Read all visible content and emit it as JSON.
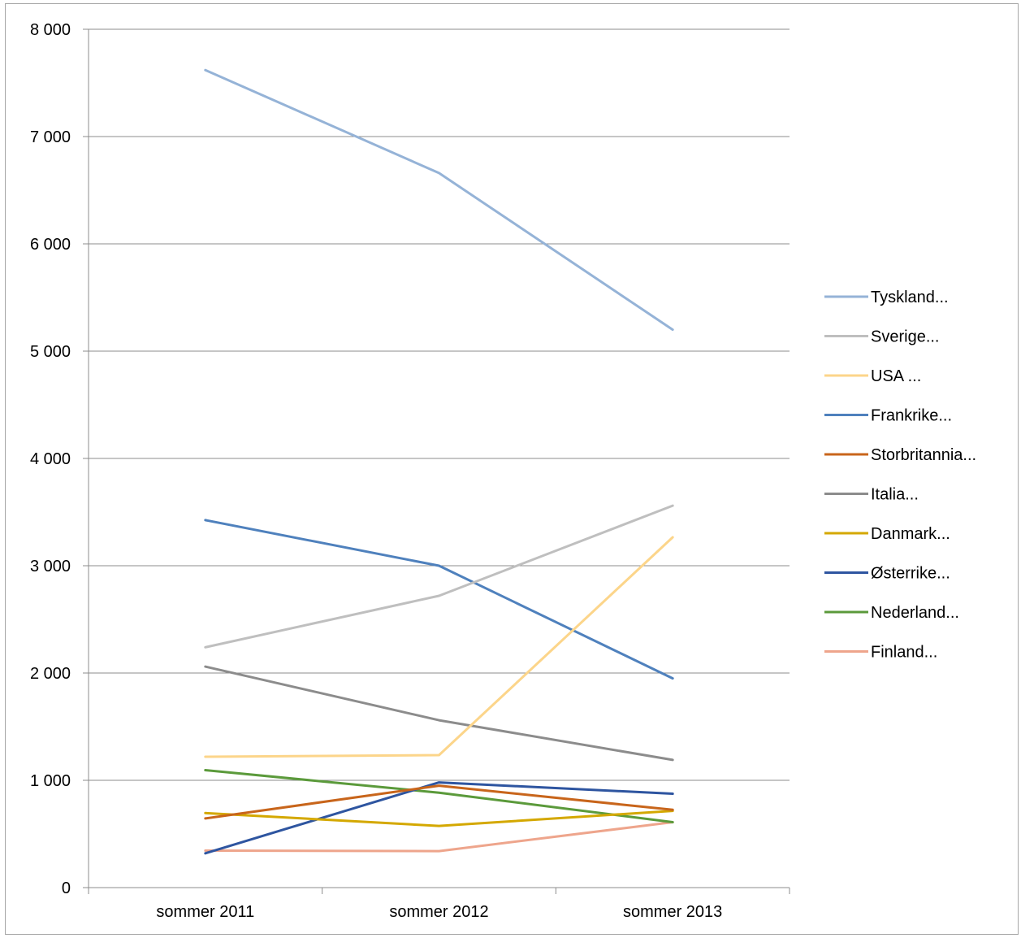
{
  "chart_data": {
    "type": "line",
    "title": "",
    "xlabel": "",
    "ylabel": "",
    "categories": [
      "sommer 2011",
      "sommer 2012",
      "sommer 2013"
    ],
    "yticks": [
      "0",
      "1 000",
      "2 000",
      "3 000",
      "4 000",
      "5 000",
      "6 000",
      "7 000",
      "8 000"
    ],
    "ylim": [
      0,
      8000
    ],
    "grid": true,
    "legend_position": "right",
    "series": [
      {
        "name": "Tyskland...",
        "color": "#95b3d7",
        "values": [
          7620,
          6660,
          5200
        ]
      },
      {
        "name": "Sverige...",
        "color": "#bfbfbf",
        "values": [
          2240,
          2720,
          3560
        ]
      },
      {
        "name": "USA ...",
        "color": "#fcd58a",
        "values": [
          1220,
          1235,
          3265
        ]
      },
      {
        "name": "Frankrike...",
        "color": "#4f81bd",
        "values": [
          3425,
          3000,
          1950
        ]
      },
      {
        "name": "Storbritannia...",
        "color": "#c8651b",
        "values": [
          645,
          950,
          725
        ]
      },
      {
        "name": "Italia...",
        "color": "#8c8c8c",
        "values": [
          2060,
          1560,
          1190
        ]
      },
      {
        "name": "Danmark...",
        "color": "#d4a800",
        "values": [
          695,
          575,
          715
        ]
      },
      {
        "name": "Østerrike...",
        "color": "#2e55a0",
        "values": [
          320,
          980,
          875
        ]
      },
      {
        "name": "Nederland...",
        "color": "#5b9a3b",
        "values": [
          1095,
          885,
          610
        ]
      },
      {
        "name": "Finland...",
        "color": "#eea58c",
        "values": [
          345,
          340,
          610
        ]
      }
    ]
  }
}
